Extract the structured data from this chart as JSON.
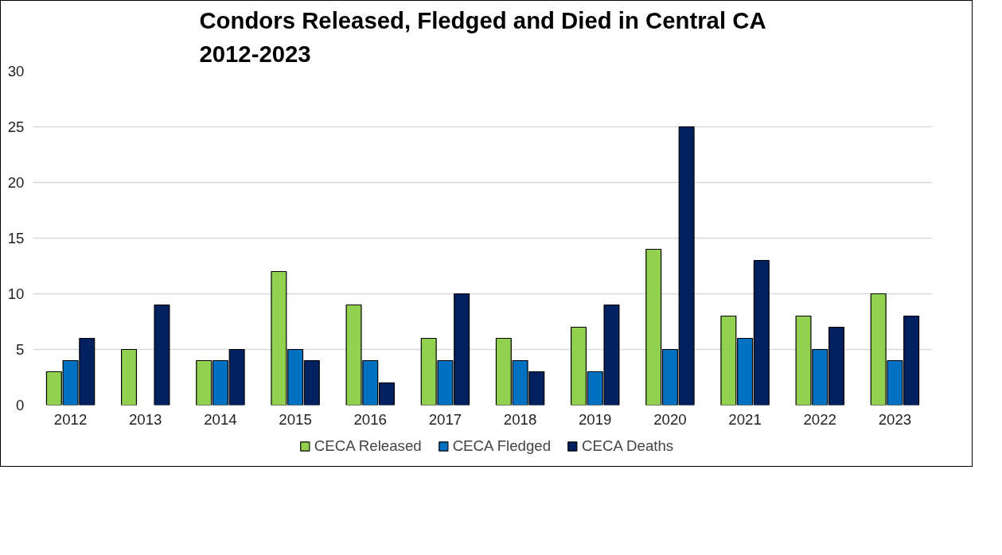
{
  "chart_data": {
    "type": "bar",
    "title": "Condors Released, Fledged and Died in Central CA\n2012-2023",
    "categories": [
      "2012",
      "2013",
      "2014",
      "2015",
      "2016",
      "2017",
      "2018",
      "2019",
      "2020",
      "2021",
      "2022",
      "2023"
    ],
    "series": [
      {
        "name": "CECA Released",
        "color": "#92d050",
        "values": [
          3,
          5,
          4,
          12,
          9,
          6,
          6,
          7,
          14,
          8,
          8,
          10
        ]
      },
      {
        "name": "CECA Fledged",
        "color": "#0070c0",
        "values": [
          4,
          null,
          4,
          5,
          4,
          4,
          4,
          3,
          5,
          6,
          5,
          4
        ]
      },
      {
        "name": "CECA Deaths",
        "color": "#002060",
        "values": [
          6,
          9,
          5,
          4,
          2,
          10,
          3,
          9,
          25,
          13,
          7,
          8
        ]
      }
    ],
    "ylim": [
      0,
      30
    ],
    "yticks": [
      0,
      5,
      10,
      15,
      20,
      25,
      30
    ],
    "grid": "y",
    "legend": "bottom"
  }
}
